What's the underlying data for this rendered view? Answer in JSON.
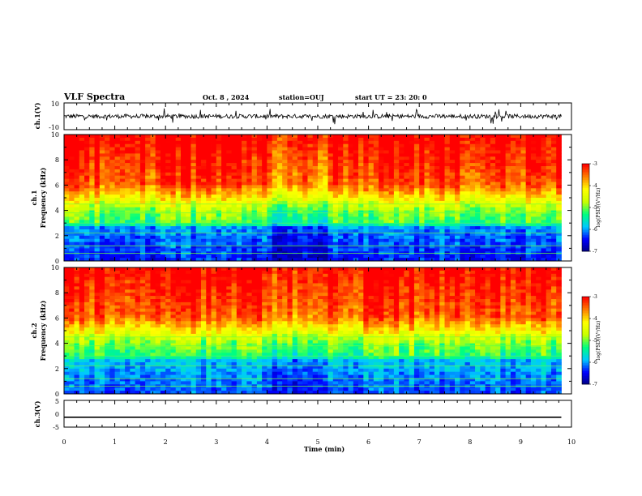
{
  "header": {
    "title": "VLF Spectra",
    "date": "Oct. 8 , 2024",
    "station": "station=OUJ",
    "start_ut": "start UT = 23: 20: 0"
  },
  "chart_data": [
    {
      "type": "line",
      "panel": "ch1-waveform",
      "ylabel": "ch.1(V)",
      "ylim": [
        -10,
        10
      ],
      "yticks": [
        "10",
        "-10"
      ],
      "x_range_min": [
        0,
        9.8
      ],
      "description_values": {
        "baseline": 0,
        "typical_amplitude": 2,
        "max_spike": 4
      }
    },
    {
      "type": "heatmap",
      "panel": "ch1-spectrogram",
      "ylabel_line1": "ch.1",
      "ylabel_line2": "Frequency (kHz)",
      "ylim": [
        0,
        10
      ],
      "yticks": [
        "0",
        "2",
        "4",
        "6",
        "8",
        "10"
      ],
      "x_range_min": [
        0,
        9.8
      ],
      "colorbar": {
        "label": "log(PSD)(V²/Hz)",
        "range": [
          -7,
          -3
        ],
        "ticks": [
          "-3",
          "-4",
          "-5",
          "-6",
          "-7"
        ]
      },
      "colormap": [
        "#000080",
        "#0000ff",
        "#00c8ff",
        "#00ff80",
        "#c8ff00",
        "#ffff00",
        "#ff8000",
        "#ff0000"
      ]
    },
    {
      "type": "heatmap",
      "panel": "ch2-spectrogram",
      "ylabel_line1": "ch.2",
      "ylabel_line2": "Frequency (kHz)",
      "ylim": [
        0,
        10
      ],
      "yticks": [
        "0",
        "2",
        "4",
        "6",
        "8",
        "10"
      ],
      "x_range_min": [
        0,
        9.8
      ],
      "colorbar": {
        "label": "log(PSD)(V²/Hz)",
        "range": [
          -7,
          -3
        ],
        "ticks": [
          "-3",
          "-4",
          "-5",
          "-6",
          "-7"
        ]
      }
    },
    {
      "type": "line",
      "panel": "ch3-waveform",
      "ylabel": "ch.3(V)",
      "ylim": [
        -5,
        5
      ],
      "yticks": [
        "5",
        "0",
        "-5"
      ],
      "x": [
        0,
        9.8
      ],
      "y": [
        -1.3,
        -1.3
      ]
    }
  ],
  "x_axis": {
    "label": "Time (min)",
    "range": [
      0,
      10
    ],
    "ticks": [
      "0",
      "1",
      "2",
      "3",
      "4",
      "5",
      "6",
      "7",
      "8",
      "9",
      "10"
    ]
  }
}
